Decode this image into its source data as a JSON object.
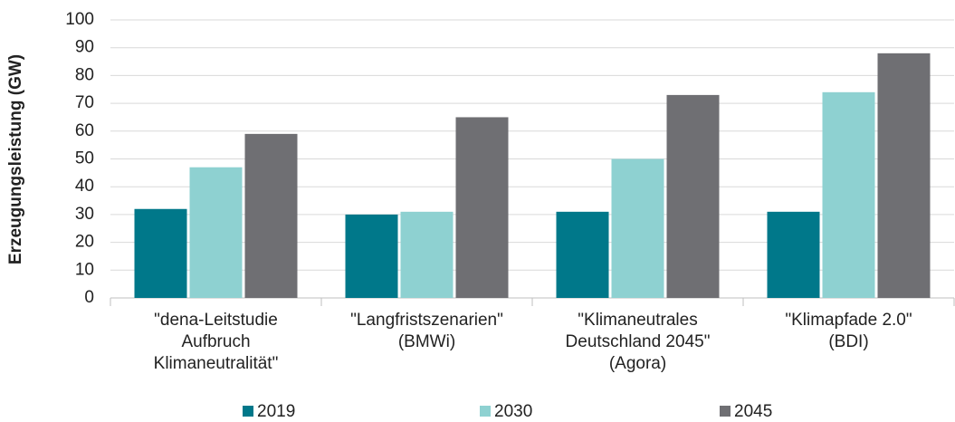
{
  "chart_data": {
    "type": "bar",
    "ylabel": "Erzeugungsleistung (GW)",
    "categories": [
      "\"dena-Leitstudie\nAufbruch\nKlimaneutralität\"",
      "\"Langfristszenarien\"\n(BMWi)",
      "\"Klimaneutrales\nDeutschland 2045\"\n(Agora)",
      "\"Klimapfade 2.0\"\n(BDI)"
    ],
    "series": [
      {
        "name": "2019",
        "color": "#00788a",
        "values": [
          32,
          30,
          31,
          31
        ]
      },
      {
        "name": "2030",
        "color": "#8ed1d1",
        "values": [
          47,
          31,
          50,
          74
        ]
      },
      {
        "name": "2045",
        "color": "#6f6f73",
        "values": [
          59,
          65,
          73,
          88
        ]
      }
    ],
    "ylim": [
      0,
      100
    ],
    "yticks": [
      0,
      10,
      20,
      30,
      40,
      50,
      60,
      70,
      80,
      90,
      100
    ],
    "grid": true,
    "legend": "bottom"
  }
}
